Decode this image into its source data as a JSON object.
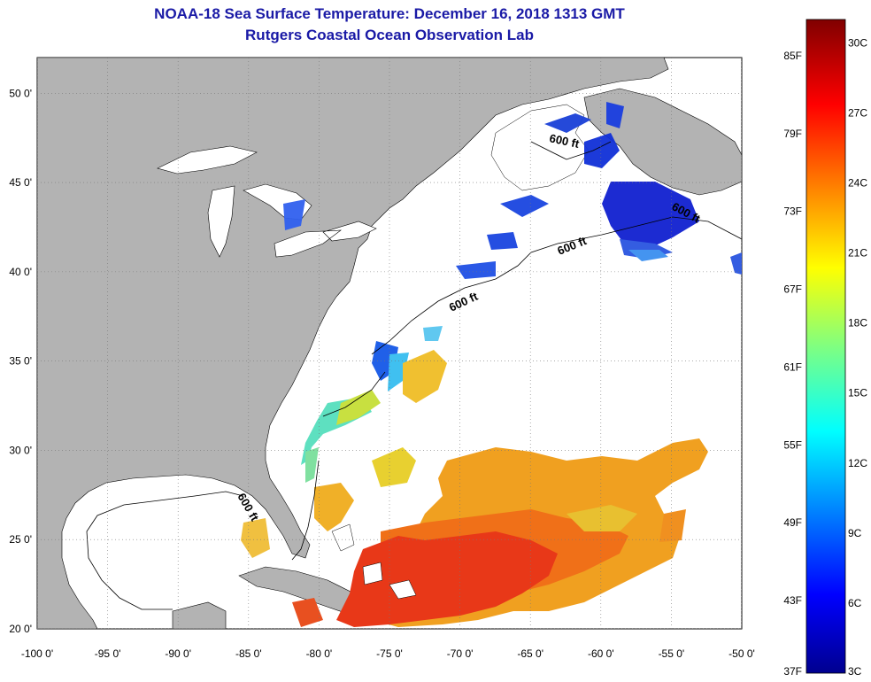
{
  "title_line1": "NOAA-18 Sea Surface Temperature:  December 16, 2018 1313 GMT",
  "title_line2": "Rutgers Coastal Ocean Observation Lab",
  "colors": {
    "land": "#b3b3b3",
    "water_nodata": "#ffffff",
    "title": "#1a1aa6",
    "grid": "#000000"
  },
  "map": {
    "lon_range": [
      -100,
      -50
    ],
    "lat_range": [
      20,
      52
    ],
    "grid": "dotted",
    "xticks": [
      {
        "value": -100,
        "label": "-100 0'"
      },
      {
        "value": -95,
        "label": "-95 0'"
      },
      {
        "value": -90,
        "label": "-90 0'"
      },
      {
        "value": -85,
        "label": "-85 0'"
      },
      {
        "value": -80,
        "label": "-80 0'"
      },
      {
        "value": -75,
        "label": "-75 0'"
      },
      {
        "value": -70,
        "label": "-70 0'"
      },
      {
        "value": -65,
        "label": "-65 0'"
      },
      {
        "value": -60,
        "label": "-60 0'"
      },
      {
        "value": -55,
        "label": "-55 0'"
      },
      {
        "value": -50,
        "label": "-50 0'"
      }
    ],
    "yticks": [
      {
        "value": 50,
        "label": "50 0'"
      },
      {
        "value": 45,
        "label": "45 0'"
      },
      {
        "value": 40,
        "label": "40 0'"
      },
      {
        "value": 35,
        "label": "35 0'"
      },
      {
        "value": 30,
        "label": "30 0'"
      },
      {
        "value": 25,
        "label": "25 0'"
      },
      {
        "value": 20,
        "label": "20 0'"
      }
    ],
    "contour_labels": [
      "600 ft",
      "600 ft",
      "600 ft",
      "600 ft",
      "600 ft"
    ]
  },
  "colorbar": {
    "fahrenheit": [
      {
        "value": 85,
        "label": "85F"
      },
      {
        "value": 79,
        "label": "79F"
      },
      {
        "value": 73,
        "label": "73F"
      },
      {
        "value": 67,
        "label": "67F"
      },
      {
        "value": 61,
        "label": "61F"
      },
      {
        "value": 55,
        "label": "55F"
      },
      {
        "value": 49,
        "label": "49F"
      },
      {
        "value": 43,
        "label": "43F"
      },
      {
        "value": 37,
        "label": "37F"
      }
    ],
    "celsius": [
      {
        "value": 30,
        "label": "30C"
      },
      {
        "value": 27,
        "label": "27C"
      },
      {
        "value": 24,
        "label": "24C"
      },
      {
        "value": 21,
        "label": "21C"
      },
      {
        "value": 18,
        "label": "18C"
      },
      {
        "value": 15,
        "label": "15C"
      },
      {
        "value": 12,
        "label": "12C"
      },
      {
        "value": 9,
        "label": "9C"
      },
      {
        "value": 6,
        "label": "6C"
      },
      {
        "value": 3,
        "label": "3C"
      }
    ]
  }
}
